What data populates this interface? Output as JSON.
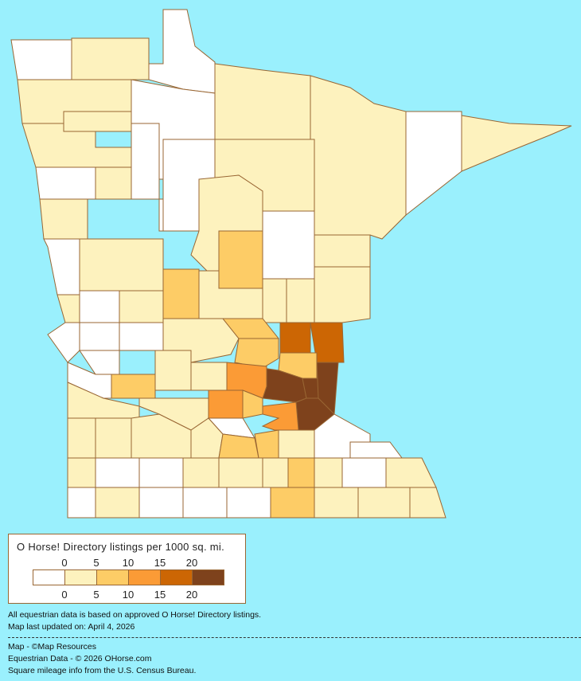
{
  "legend": {
    "title": "O Horse! Directory listings per 1000 sq. mi.",
    "ticks": [
      "0",
      "5",
      "10",
      "15",
      "20"
    ],
    "classes": [
      {
        "range": "0",
        "color": "#FFFFFF"
      },
      {
        "range": "0-5",
        "color": "#FDF2BE"
      },
      {
        "range": "5-10",
        "color": "#FDCC66"
      },
      {
        "range": "10-15",
        "color": "#FB9B36"
      },
      {
        "range": "15-20",
        "color": "#CC6604"
      },
      {
        "range": "20+",
        "color": "#7E421C"
      }
    ]
  },
  "colors": {
    "background": "#9AF0FD",
    "border": "#996633"
  },
  "county_levels": [
    0,
    1,
    0,
    1,
    1,
    0,
    1,
    1,
    1,
    1,
    0,
    0,
    0,
    1,
    1,
    0,
    1,
    0,
    1,
    2,
    0,
    1,
    1,
    0,
    1,
    2,
    1,
    1,
    1,
    0,
    1,
    1,
    0,
    0,
    1,
    2,
    2,
    4,
    4,
    2,
    5,
    5,
    5,
    5,
    3,
    3,
    3,
    2,
    0,
    0,
    1,
    1,
    0,
    2,
    1,
    1,
    1,
    1,
    1,
    1,
    0,
    2,
    2,
    1,
    0,
    0,
    1,
    0,
    0,
    1,
    1,
    1,
    2,
    1,
    0,
    1,
    0,
    1,
    0,
    0,
    0,
    2,
    1
  ],
  "notes": {
    "line1": "All equestrian data is based on approved O Horse! Directory listings.",
    "line2": "Map last updated on: April 4, 2026",
    "credit1": "Map - ©Map Resources",
    "credit2": "Equestrian Data - © 2026 OHorse.com",
    "credit3": "Square mileage info from the U.S. Census Bureau."
  }
}
